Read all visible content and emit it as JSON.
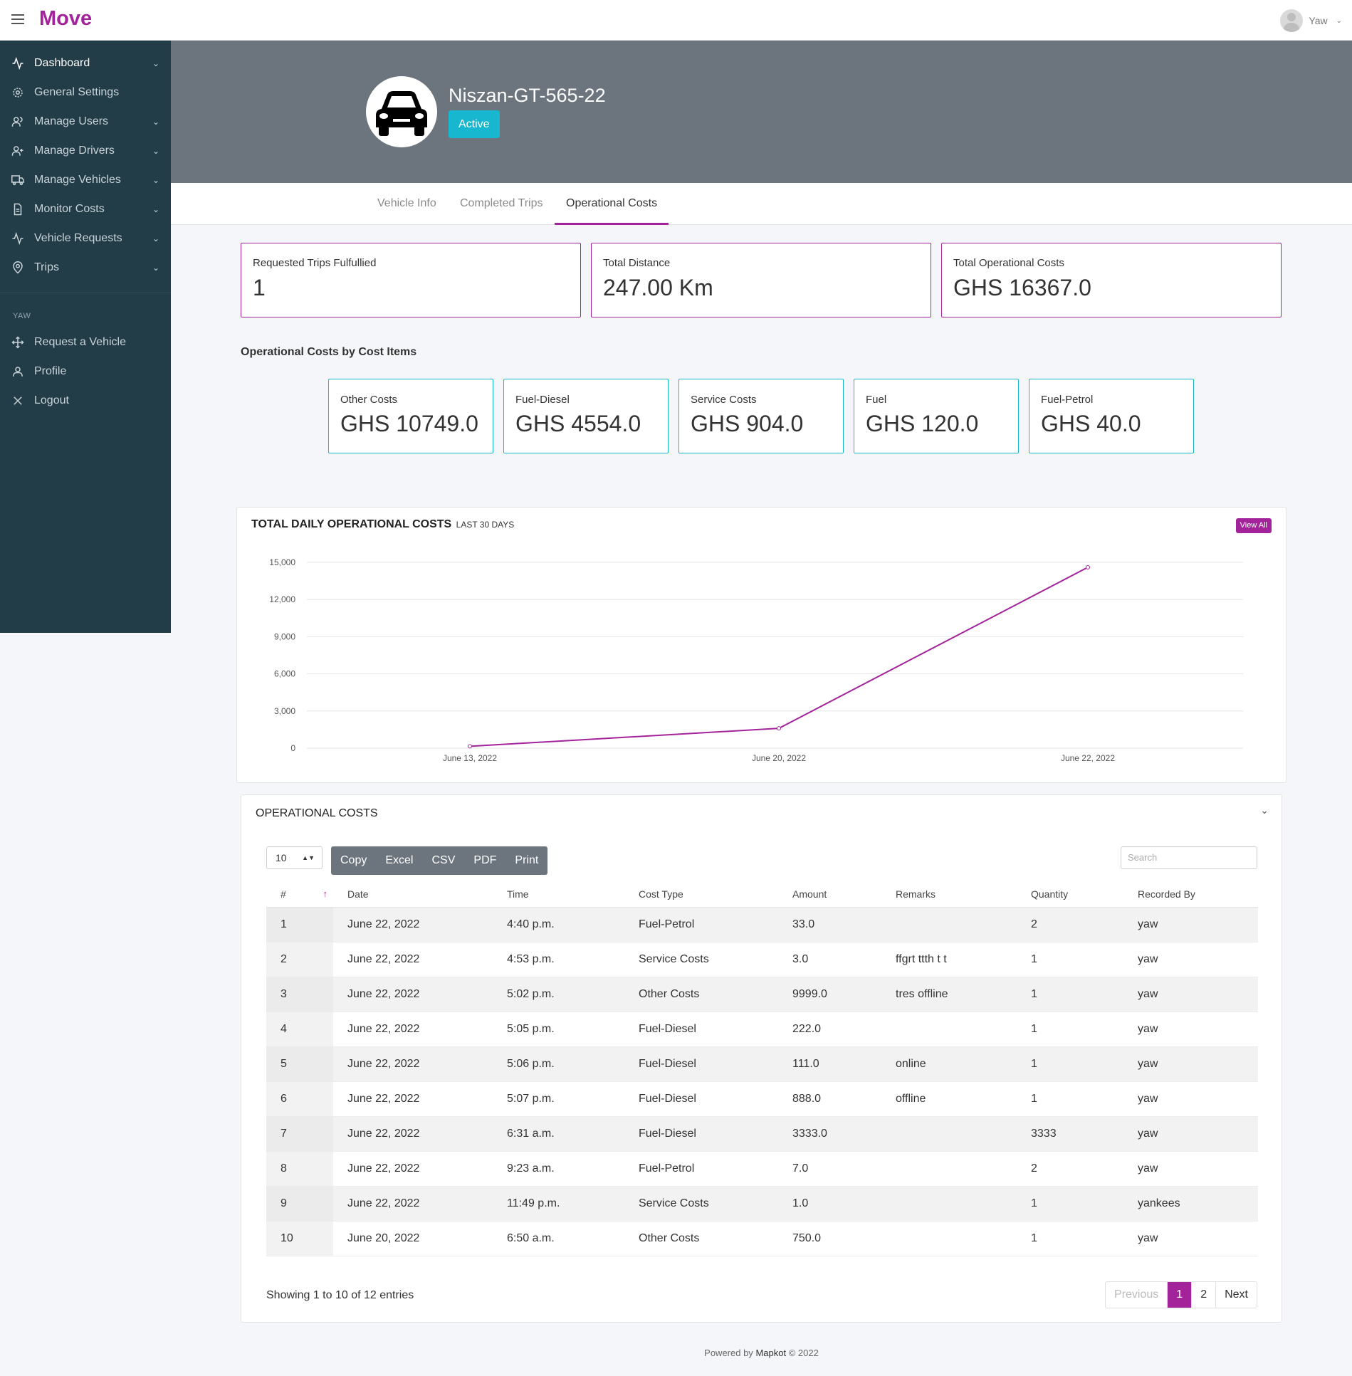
{
  "app": {
    "brand": "Move",
    "user_name": "Yaw"
  },
  "sidebar": {
    "items": [
      {
        "label": "Dashboard",
        "icon": "activity-icon",
        "caret": true,
        "active": true
      },
      {
        "label": "General Settings",
        "icon": "gear-icon",
        "caret": false
      },
      {
        "label": "Manage Users",
        "icon": "users-icon",
        "caret": true
      },
      {
        "label": "Manage Drivers",
        "icon": "user-plus-icon",
        "caret": true
      },
      {
        "label": "Manage Vehicles",
        "icon": "truck-icon",
        "caret": true
      },
      {
        "label": "Monitor Costs",
        "icon": "file-text-icon",
        "caret": true
      },
      {
        "label": "Vehicle Requests",
        "icon": "activity-icon",
        "caret": true
      },
      {
        "label": "Trips",
        "icon": "map-pin-icon",
        "caret": true
      }
    ],
    "section_label": "YAW",
    "user_items": [
      {
        "label": "Request a Vehicle",
        "icon": "move-icon"
      },
      {
        "label": "Profile",
        "icon": "user-icon"
      },
      {
        "label": "Logout",
        "icon": "close-icon"
      }
    ]
  },
  "vehicle": {
    "name": "Niszan-GT-565-22",
    "status": "Active"
  },
  "tabs": [
    {
      "label": "Vehicle Info",
      "active": false
    },
    {
      "label": "Completed Trips",
      "active": false
    },
    {
      "label": "Operational Costs",
      "active": true
    }
  ],
  "stats": [
    {
      "label": "Requested Trips Fulfullied",
      "value": "1"
    },
    {
      "label": "Total Distance",
      "value": "247.00 Km"
    },
    {
      "label": "Total Operational Costs",
      "value": "GHS 16367.0"
    }
  ],
  "cost_items_title": "Operational Costs by Cost Items",
  "cost_items": [
    {
      "label": "Other Costs",
      "value": "GHS 10749.0"
    },
    {
      "label": "Fuel-Diesel",
      "value": "GHS 4554.0"
    },
    {
      "label": "Service Costs",
      "value": "GHS 904.0"
    },
    {
      "label": "Fuel",
      "value": "GHS 120.0"
    },
    {
      "label": "Fuel-Petrol",
      "value": "GHS 40.0"
    }
  ],
  "chart": {
    "title": "TOTAL DAILY OPERATIONAL COSTS",
    "subtitle": "LAST 30 DAYS",
    "view_all": "View All"
  },
  "chart_data": {
    "type": "line",
    "x": [
      "June 13, 2022",
      "June 20, 2022",
      "June 22, 2022"
    ],
    "series": [
      {
        "values": [
          150,
          1600,
          14600
        ],
        "color": "#a3239b"
      }
    ],
    "ylim": [
      0,
      15000
    ],
    "yticks": [
      0,
      3000,
      6000,
      9000,
      12000,
      15000
    ],
    "ytick_labels": [
      "0",
      "3,000",
      "6,000",
      "9,000",
      "12,000",
      "15,000"
    ],
    "grid": true,
    "xlabel": "",
    "ylabel": "",
    "title": "TOTAL DAILY OPERATIONAL COSTS"
  },
  "table": {
    "title": "OPERATIONAL COSTS",
    "page_length": "10",
    "buttons": [
      "Copy",
      "Excel",
      "CSV",
      "PDF",
      "Print"
    ],
    "search_placeholder": "Search",
    "columns": [
      "#",
      "Date",
      "Time",
      "Cost Type",
      "Amount",
      "Remarks",
      "Quantity",
      "Recorded By"
    ],
    "rows": [
      [
        "1",
        "June 22, 2022",
        "4:40 p.m.",
        "Fuel-Petrol",
        "33.0",
        "",
        "2",
        "yaw"
      ],
      [
        "2",
        "June 22, 2022",
        "4:53 p.m.",
        "Service Costs",
        "3.0",
        "ffgrt ttth t t",
        "1",
        "yaw"
      ],
      [
        "3",
        "June 22, 2022",
        "5:02 p.m.",
        "Other Costs",
        "9999.0",
        "tres offline",
        "1",
        "yaw"
      ],
      [
        "4",
        "June 22, 2022",
        "5:05 p.m.",
        "Fuel-Diesel",
        "222.0",
        "",
        "1",
        "yaw"
      ],
      [
        "5",
        "June 22, 2022",
        "5:06 p.m.",
        "Fuel-Diesel",
        "111.0",
        "online",
        "1",
        "yaw"
      ],
      [
        "6",
        "June 22, 2022",
        "5:07 p.m.",
        "Fuel-Diesel",
        "888.0",
        "offline",
        "1",
        "yaw"
      ],
      [
        "7",
        "June 22, 2022",
        "6:31 a.m.",
        "Fuel-Diesel",
        "3333.0",
        "",
        "3333",
        "yaw"
      ],
      [
        "8",
        "June 22, 2022",
        "9:23 a.m.",
        "Fuel-Petrol",
        "7.0",
        "",
        "2",
        "yaw"
      ],
      [
        "9",
        "June 22, 2022",
        "11:49 p.m.",
        "Service Costs",
        "1.0",
        "",
        "1",
        "yankees"
      ],
      [
        "10",
        "June 20, 2022",
        "6:50 a.m.",
        "Other Costs",
        "750.0",
        "",
        "1",
        "yaw"
      ]
    ],
    "info": "Showing 1 to 10 of 12 entries",
    "pagination": {
      "previous": "Previous",
      "pages": [
        "1",
        "2"
      ],
      "current": "1",
      "next": "Next"
    }
  },
  "footer": {
    "prefix": "Powered by",
    "brand": "Mapkot",
    "suffix": "© 2022"
  },
  "colors": {
    "brand": "#a3239b",
    "sidebar": "#223c48",
    "banner": "#6c757d",
    "badge": "#17b7cf"
  }
}
